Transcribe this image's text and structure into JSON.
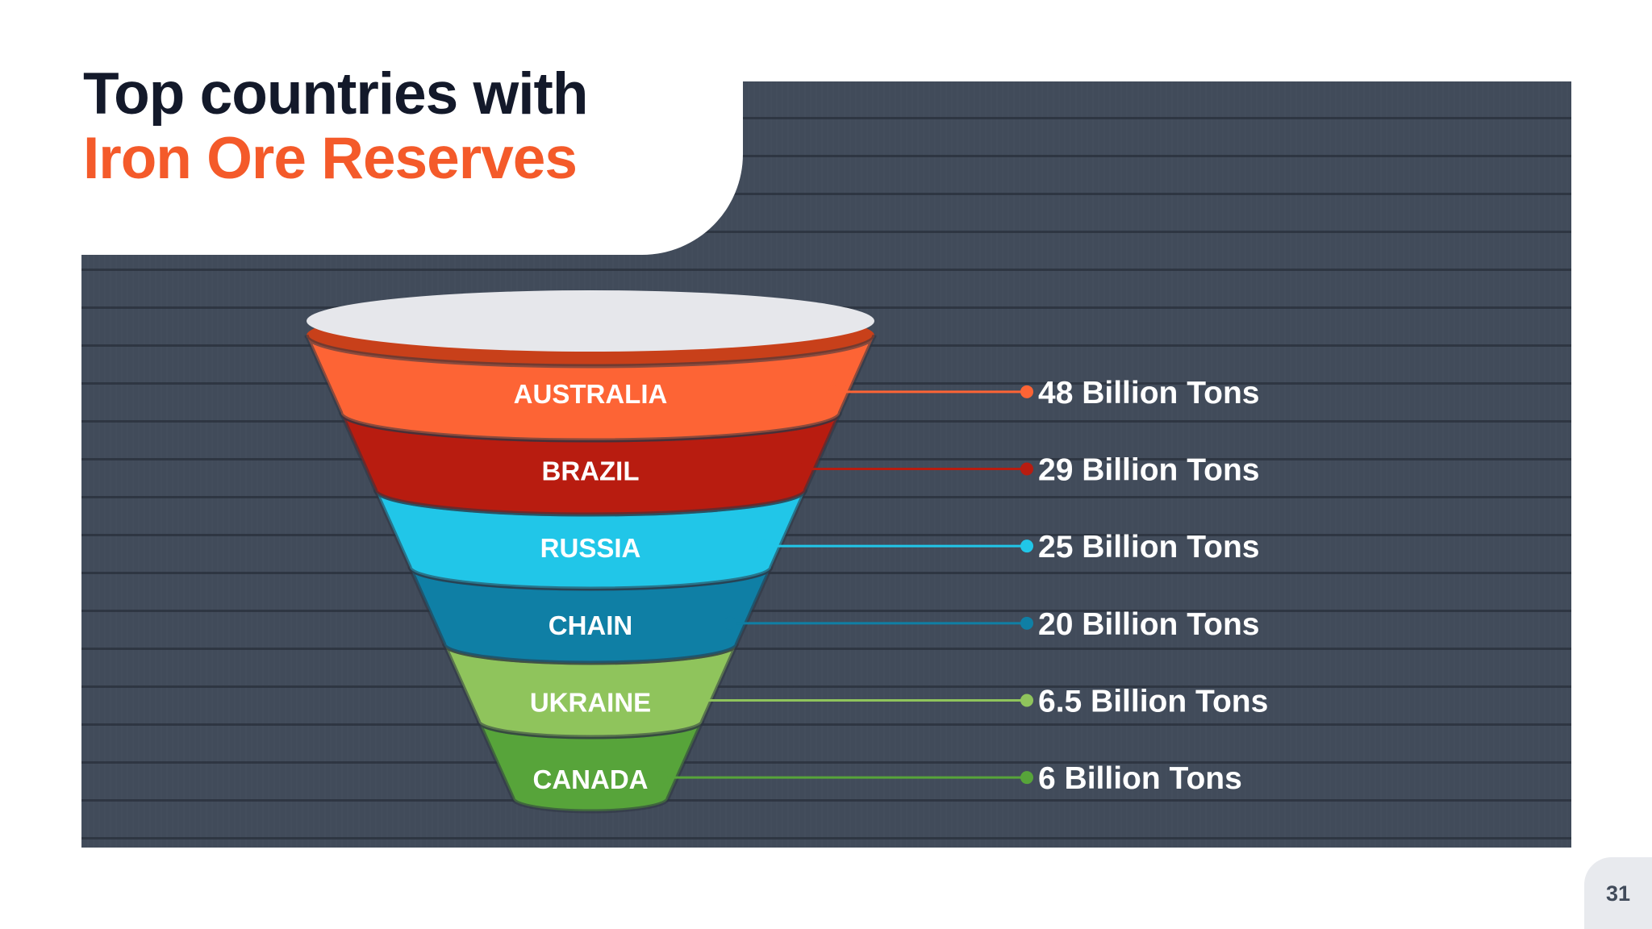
{
  "title": {
    "line1": "Top countries with",
    "line2": "Iron Ore Reserves"
  },
  "stages": [
    {
      "label": "AUSTRALIA",
      "value": "48 Billion Tons",
      "color": "#fd6435",
      "shade": "#c8401a"
    },
    {
      "label": "BRAZIL",
      "value": "29 Billion Tons",
      "color": "#b81c10",
      "shade": "#8a130a"
    },
    {
      "label": "RUSSIA",
      "value": "25 Billion Tons",
      "color": "#21c6e8",
      "shade": "#1593b0"
    },
    {
      "label": "CHAIN",
      "value": "20 Billion Tons",
      "color": "#0f7fa5",
      "shade": "#0a5c78"
    },
    {
      "label": "UKRAINE",
      "value": "6.5 Billion Tons",
      "color": "#8fc45c",
      "shade": "#669b3a"
    },
    {
      "label": "CANADA",
      "value": "6 Billion Tons",
      "color": "#57a43a",
      "shade": "#3d7d26"
    }
  ],
  "colors": {
    "panel": "#414b5a",
    "title_dark": "#13192a",
    "title_accent": "#f45a2a",
    "funnel_top": "#e6e7eb"
  },
  "page_number": "31"
}
